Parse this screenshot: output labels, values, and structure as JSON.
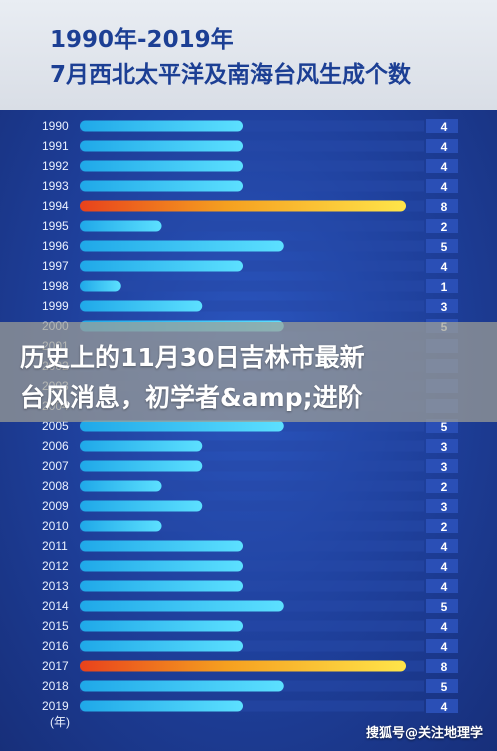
{
  "header": {
    "title_line1": "1990年-2019年",
    "title_line2": "7月西北太平洋及南海台风生成个数"
  },
  "overlay": {
    "line1": "历史上的11月30日吉林市最新",
    "line2": "台风消息，初学者&amp;进阶"
  },
  "watermark": "搜狐号@关注地理学",
  "colors": {
    "bar_normal_start": "#1fa8e8",
    "bar_normal_end": "#5ce0ff",
    "bar_peak_start": "#e8421c",
    "bar_peak_mid": "#f5a020",
    "bar_peak_end": "#ffe54a",
    "value_box": "#2a4fb6",
    "track": "#2748a8"
  },
  "chart_data": {
    "type": "bar",
    "orientation": "horizontal",
    "categories": [
      "1990",
      "1991",
      "1992",
      "1993",
      "1994",
      "1995",
      "1996",
      "1997",
      "1998",
      "1999",
      "2000",
      "2001",
      "2002",
      "2003",
      "2004",
      "2005",
      "2006",
      "2007",
      "2008",
      "2009",
      "2010",
      "2011",
      "2012",
      "2013",
      "2014",
      "2015",
      "2016",
      "2017",
      "2018",
      "2019"
    ],
    "values": [
      4,
      4,
      4,
      4,
      8,
      2,
      5,
      4,
      1,
      3,
      5,
      null,
      null,
      null,
      null,
      5,
      3,
      3,
      2,
      3,
      2,
      4,
      4,
      4,
      5,
      4,
      4,
      8,
      5,
      4
    ],
    "value_labels": [
      "4",
      "4",
      "4",
      "4",
      "8",
      "2",
      "5",
      "4",
      "1",
      "3",
      "5",
      "",
      "",
      "",
      "",
      "5",
      "3",
      "3",
      "2",
      "3",
      "2",
      "4",
      "4",
      "4",
      "5",
      "4",
      "4",
      "8",
      "5",
      "4"
    ],
    "xlim": [
      0,
      8
    ],
    "unit_label": "(年)",
    "legend": "none"
  }
}
